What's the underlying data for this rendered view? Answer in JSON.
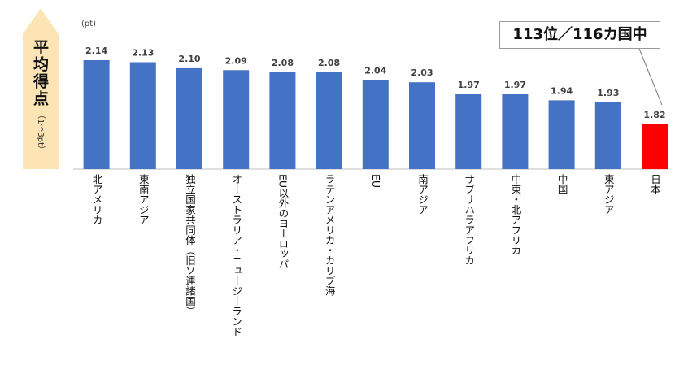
{
  "y_axis_label": "平均得点",
  "y_axis_sublabel": "（1～3pt）",
  "unit": "(pt)",
  "callout": "113位／116カ国中",
  "colors": {
    "bar": "#4472C4",
    "highlight": "#FF0000",
    "arrow": "#FCE4B5"
  },
  "chart_data": {
    "type": "bar",
    "categories": [
      "北アメリカ",
      "東南アジア",
      "独立国家共同体（旧ソ連諸国）",
      "オーストラリア・ニュージーランド",
      "EU以外のヨーロッパ",
      "ラテンアメリカ・カリブ海",
      "EU",
      "南アジア",
      "サブサハラアフリカ",
      "中東・北アフリカ",
      "中国",
      "東アジア",
      "日本"
    ],
    "values": [
      2.14,
      2.13,
      2.1,
      2.09,
      2.08,
      2.08,
      2.04,
      2.03,
      1.97,
      1.97,
      1.94,
      1.93,
      1.82
    ],
    "value_labels": [
      "2.14",
      "2.13",
      "2.10",
      "2.09",
      "2.08",
      "2.08",
      "2.04",
      "2.03",
      "1.97",
      "1.97",
      "1.94",
      "1.93",
      "1.82"
    ],
    "highlight_category": "日本",
    "ylabel": "平均得点",
    "unit": "pt"
  }
}
